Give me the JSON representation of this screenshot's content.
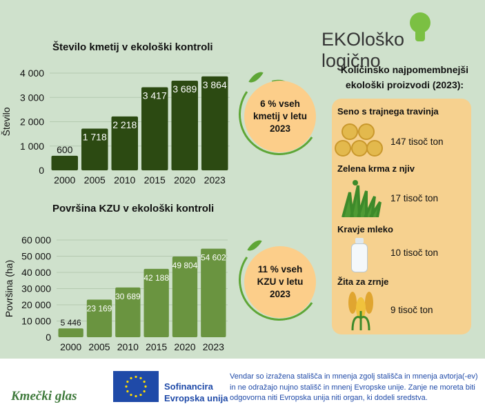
{
  "logo": {
    "part1": "EKOloško",
    "part2": "logično"
  },
  "chart_data": [
    {
      "type": "bar",
      "title": "Število kmetij v ekološki kontroli",
      "ylabel": "Število",
      "xlabel": "",
      "categories": [
        "2000",
        "2005",
        "2010",
        "2015",
        "2020",
        "2023"
      ],
      "values": [
        600,
        1718,
        2218,
        3417,
        3689,
        3864
      ],
      "labels": [
        "600",
        "1 718",
        "2 218",
        "3 417",
        "3 689",
        "3 864"
      ],
      "ylim": [
        0,
        4000
      ],
      "yticks": [
        "0",
        "1 000",
        "2 000",
        "3 000",
        "4 000"
      ],
      "grid": true,
      "color": "#2c4a12"
    },
    {
      "type": "bar",
      "title": "Površina KZU v ekološki kontroli",
      "ylabel": "Površina (ha)",
      "xlabel": "",
      "categories": [
        "2000",
        "2005",
        "2010",
        "2015",
        "2020",
        "2023"
      ],
      "values": [
        5446,
        23169,
        30689,
        42188,
        49804,
        54602
      ],
      "labels": [
        "5 446",
        "23 169",
        "30 689",
        "42 188",
        "49 804",
        "54 602"
      ],
      "ylim": [
        0,
        60000
      ],
      "yticks": [
        "0",
        "10 000",
        "20 000",
        "30 000",
        "40 000",
        "50 000",
        "60 000"
      ],
      "grid": true,
      "color": "#6a9440"
    }
  ],
  "callouts": [
    {
      "lines": [
        "6 % vseh",
        "kmetij v letu",
        "2023"
      ]
    },
    {
      "lines": [
        "11 % vseh",
        "KZU v letu",
        "2023"
      ]
    }
  ],
  "products": {
    "title_lines": [
      "Količinsko najpomembnejši",
      "ekološki proizvodi (2023):"
    ],
    "items": [
      {
        "name": "Seno s trajnega travinja",
        "value": "147 tisoč ton",
        "icon": "hay-bales-icon"
      },
      {
        "name": "Zelena krma z njiv",
        "value": "17 tisoč ton",
        "icon": "grass-icon"
      },
      {
        "name": "Kravje mleko",
        "value": "10 tisoč ton",
        "icon": "milk-bottle-icon"
      },
      {
        "name": "Žita za zrnje",
        "value": "9 tisoč ton",
        "icon": "wheat-corn-icon"
      }
    ]
  },
  "footer": {
    "brand": "Kmečki glas",
    "eu_line1": "Sofinancira",
    "eu_line2": "Evropska unija",
    "disclaimer": [
      "Vendar so izražena stališča in mnenja zgolj stališča in mnenja avtorja(-ev)",
      "in ne odražajo nujno stališč in mnenj Evropske unije. Zanje ne moreta biti",
      "odgovorna niti Evropska unija niti organ, ki dodeli sredstva."
    ]
  }
}
